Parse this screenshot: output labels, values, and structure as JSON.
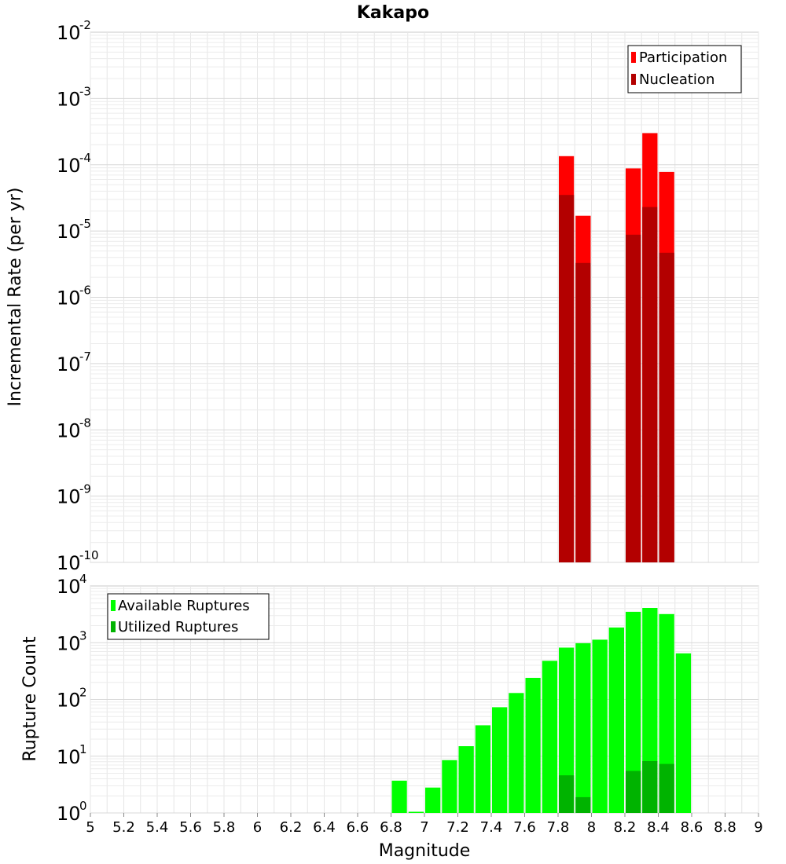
{
  "chart_data": [
    {
      "type": "bar",
      "title": "Kakapo",
      "xlabel": "Magnitude",
      "ylabel": "Incremental Rate (per yr)",
      "yscale": "log",
      "xlim": [
        5,
        9
      ],
      "ylim_exponents": [
        -10,
        -2
      ],
      "grid": true,
      "legend_position": "top-right",
      "bin_width": 0.1,
      "x": [
        7.85,
        7.95,
        8.25,
        8.35,
        8.45
      ],
      "series": [
        {
          "name": "Participation",
          "color": "#ff0000",
          "values": [
            0.000135,
            1.7e-05,
            8.8e-05,
            0.0003,
            7.8e-05
          ]
        },
        {
          "name": "Nucleation",
          "color": "#b30000",
          "values": [
            3.5e-05,
            3.3e-06,
            8.8e-06,
            2.3e-05,
            4.7e-06
          ]
        }
      ]
    },
    {
      "type": "bar",
      "title": "",
      "xlabel": "Magnitude",
      "ylabel": "Rupture Count",
      "yscale": "log",
      "xlim": [
        5,
        9
      ],
      "ylim_exponents": [
        0,
        4
      ],
      "grid": true,
      "legend_position": "top-left",
      "bin_width": 0.1,
      "x": [
        6.85,
        6.95,
        7.05,
        7.15,
        7.25,
        7.35,
        7.45,
        7.55,
        7.65,
        7.75,
        7.85,
        7.95,
        8.05,
        8.15,
        8.25,
        8.35,
        8.45,
        8.55
      ],
      "series": [
        {
          "name": "Available Ruptures",
          "color": "#00ff00",
          "values": [
            3.7,
            1.05,
            2.8,
            8.5,
            15,
            35,
            73,
            130,
            240,
            480,
            820,
            980,
            1130,
            1850,
            3500,
            4100,
            3200,
            650
          ]
        },
        {
          "name": "Utilized Ruptures",
          "color": "#00b300",
          "values": [
            null,
            null,
            null,
            null,
            null,
            null,
            null,
            null,
            null,
            null,
            4.6,
            1.9,
            null,
            null,
            5.5,
            8.2,
            7.3,
            null
          ]
        }
      ]
    }
  ],
  "x_tick_labels": [
    "5",
    "5.2",
    "5.4",
    "5.6",
    "5.8",
    "6",
    "6.2",
    "6.4",
    "6.6",
    "6.8",
    "7",
    "7.2",
    "7.4",
    "7.6",
    "7.8",
    "8",
    "8.2",
    "8.4",
    "8.6",
    "8.8",
    "9"
  ]
}
